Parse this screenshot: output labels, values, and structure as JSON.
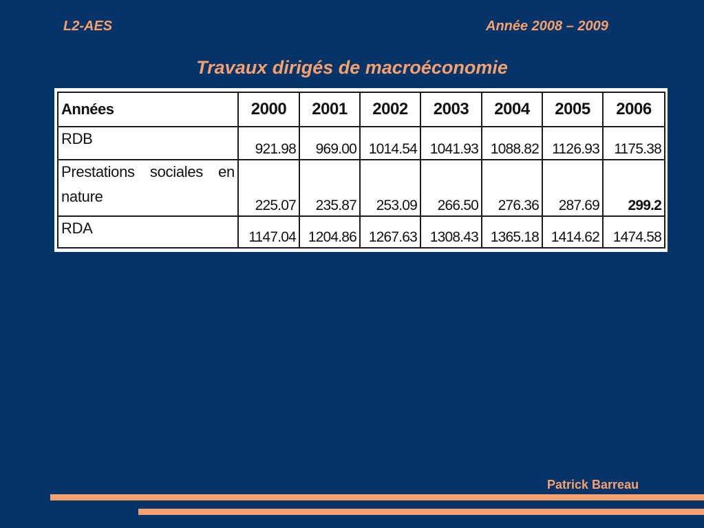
{
  "header": {
    "left": "L2-AES",
    "right": "Année 2008 – 2009"
  },
  "title": "Travaux dirigés de macroéconomie",
  "table": {
    "header_label": "Années",
    "years": [
      "2000",
      "2001",
      "2002",
      "2003",
      "2004",
      "2005",
      "2006"
    ],
    "rows": [
      {
        "label": "RDB",
        "values": [
          "921.98",
          "969.00",
          "1014.54",
          "1041.93",
          "1088.82",
          "1126.93",
          "1175.38"
        ]
      },
      {
        "label_line1_words": [
          "Prestations",
          "sociales",
          "en"
        ],
        "label_line2": "nature",
        "values": [
          "225.07",
          "235.87",
          "253.09",
          "266.50",
          "276.36",
          "287.69",
          "299.2"
        ]
      },
      {
        "label": "RDA",
        "values": [
          "1147.04",
          "1204.86",
          "1267.63",
          "1308.43",
          "1365.18",
          "1414.62",
          "1474.58"
        ]
      }
    ]
  },
  "footer": {
    "author": "Patrick Barreau"
  },
  "colors": {
    "background": "#053468",
    "accent": "#f8a06e"
  }
}
